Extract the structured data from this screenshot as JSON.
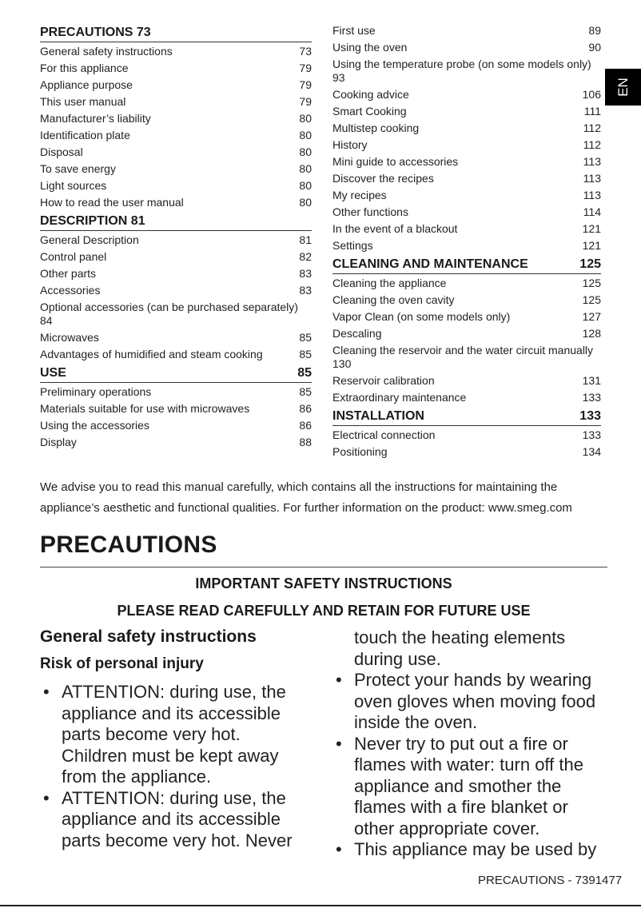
{
  "toc_left": [
    {
      "type": "h",
      "label": "PRECAUTIONS 73",
      "page": ""
    },
    {
      "label": "General safety instructions",
      "page": "73"
    },
    {
      "label": "For this appliance",
      "page": "79"
    },
    {
      "label": "Appliance purpose",
      "page": "79"
    },
    {
      "label": "This user manual",
      "page": "79"
    },
    {
      "label": "Manufacturer’s liability",
      "page": "80"
    },
    {
      "label": "Identification plate",
      "page": "80"
    },
    {
      "label": "Disposal",
      "page": "80"
    },
    {
      "label": "To save energy",
      "page": "80"
    },
    {
      "label": "Light sources",
      "page": "80"
    },
    {
      "label": "How to read the user manual",
      "page": "80"
    },
    {
      "type": "h",
      "label": "DESCRIPTION 81",
      "page": ""
    },
    {
      "label": "General Description",
      "page": "81"
    },
    {
      "label": "Control panel",
      "page": "82"
    },
    {
      "label": "Other parts",
      "page": "83"
    },
    {
      "label": "Accessories",
      "page": "83"
    },
    {
      "type": "w",
      "label": "Optional accessories (can be purchased separately)",
      "page": "84"
    },
    {
      "label": "Microwaves",
      "page": "85"
    },
    {
      "label": "Advantages of humidified and steam cooking",
      "page": "85"
    },
    {
      "type": "h",
      "label": "USE",
      "page": "85"
    },
    {
      "label": "Preliminary operations",
      "page": "85"
    },
    {
      "label": "Materials suitable for use with microwaves",
      "page": "86"
    },
    {
      "label": "Using the accessories",
      "page": "86"
    },
    {
      "label": "Display",
      "page": "88"
    }
  ],
  "toc_right": [
    {
      "label": "First use",
      "page": "89"
    },
    {
      "label": "Using the oven",
      "page": "90"
    },
    {
      "type": "w",
      "label": "Using the temperature probe (on some models only)",
      "page": "93"
    },
    {
      "label": "Cooking advice",
      "page": "106"
    },
    {
      "label": "Smart Cooking",
      "page": "111"
    },
    {
      "label": "Multistep cooking",
      "page": "112"
    },
    {
      "label": "History",
      "page": "112"
    },
    {
      "label": "Mini guide to accessories",
      "page": "113"
    },
    {
      "label": "Discover the recipes",
      "page": "113"
    },
    {
      "label": "My recipes",
      "page": "113"
    },
    {
      "label": "Other functions",
      "page": "114"
    },
    {
      "label": "In the event of a blackout",
      "page": "121"
    },
    {
      "label": "Settings",
      "page": "121"
    },
    {
      "type": "h",
      "label": "CLEANING AND MAINTENANCE",
      "page": "125"
    },
    {
      "label": "Cleaning the appliance",
      "page": "125"
    },
    {
      "label": "Cleaning the oven cavity",
      "page": "125"
    },
    {
      "label": "Vapor Clean (on some models only)",
      "page": "127"
    },
    {
      "label": "Descaling",
      "page": "128"
    },
    {
      "type": "w",
      "label": "Cleaning the reservoir and the water circuit manually",
      "page": "130"
    },
    {
      "label": "Reservoir calibration",
      "page": "131"
    },
    {
      "label": "Extraordinary maintenance",
      "page": "133"
    },
    {
      "type": "h",
      "label": "INSTALLATION",
      "page": "133"
    },
    {
      "label": "Electrical connection",
      "page": "133"
    },
    {
      "label": "Positioning",
      "page": "134"
    }
  ],
  "lang_tab": "EN",
  "intro": "We advise you to read this manual carefully, which contains all the instructions for maintaining the appliance’s aesthetic and functional qualities. For further information on the product: www.smeg.com",
  "title": "PRECAUTIONS",
  "important": "IMPORTANT SAFETY INSTRUCTIONS",
  "retain": "PLEASE READ CAREFULLY AND RETAIN FOR FUTURE USE",
  "section": "General safety instructions",
  "subsection": "Risk of personal injury",
  "bullets_left": [
    "ATTENTION: during use, the appliance and its accessible parts become very hot. Children must be kept away from the appliance.",
    "ATTENTION: during use, the appliance and its accessible parts become very hot. Never"
  ],
  "bullets_right": [
    {
      "cont": true,
      "text": "touch the heating elements during use."
    },
    {
      "text": "Protect your hands by wearing oven gloves when moving food inside the oven."
    },
    {
      "text": "Never try to put out a fire or flames with water: turn off the appliance and smother the flames with a fire blanket or other appropriate cover."
    },
    {
      "text": "This appliance may be used by"
    }
  ],
  "footer": "PRECAUTIONS  -  7391477"
}
